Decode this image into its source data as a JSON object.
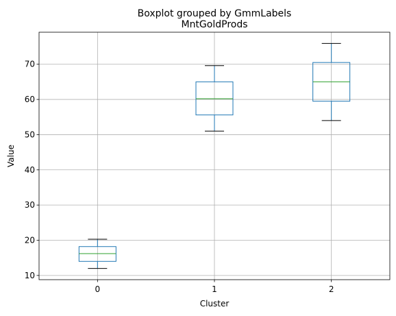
{
  "chart_data": {
    "type": "boxplot",
    "title": "Boxplot grouped by GmmLabels",
    "subtitle": "MntGoldProds",
    "xlabel": "Cluster",
    "ylabel": "Value",
    "categories": [
      "0",
      "1",
      "2"
    ],
    "boxes": [
      {
        "category": "0",
        "whisker_low": 12.0,
        "q1": 14.0,
        "median": 16.2,
        "q3": 18.2,
        "whisker_high": 20.3
      },
      {
        "category": "1",
        "whisker_low": 51.0,
        "q1": 55.6,
        "median": 60.2,
        "q3": 65.0,
        "whisker_high": 69.6
      },
      {
        "category": "2",
        "whisker_low": 54.0,
        "q1": 59.5,
        "median": 65.0,
        "q3": 70.5,
        "whisker_high": 75.9
      }
    ],
    "yticks": [
      10,
      20,
      30,
      40,
      50,
      60,
      70
    ],
    "ylim": [
      8.8,
      79.1
    ],
    "grid": true,
    "colors": {
      "box": "#1f77b4",
      "median": "#2ca02c",
      "cap": "#000000",
      "grid": "#b0b0b0"
    }
  }
}
